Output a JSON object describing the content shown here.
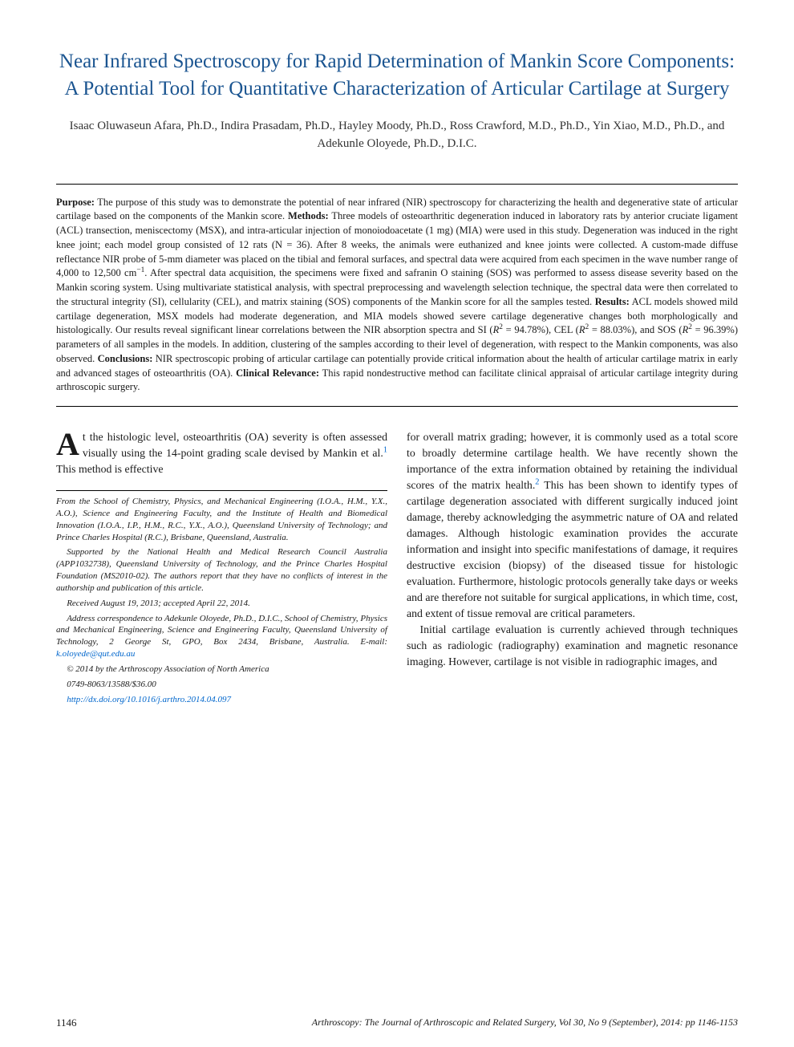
{
  "title": "Near Infrared Spectroscopy for Rapid Determination of Mankin Score Components: A Potential Tool for Quantitative Characterization of Articular Cartilage at Surgery",
  "authors": "Isaac Oluwaseun Afara, Ph.D., Indira Prasadam, Ph.D., Hayley Moody, Ph.D., Ross Crawford, M.D., Ph.D., Yin Xiao, M.D., Ph.D., and Adekunle Oloyede, Ph.D., D.I.C.",
  "abstract": {
    "purpose_label": "Purpose:",
    "purpose": " The purpose of this study was to demonstrate the potential of near infrared (NIR) spectroscopy for characterizing the health and degenerative state of articular cartilage based on the components of the Mankin score. ",
    "methods_label": "Methods:",
    "methods_a": " Three models of osteoarthritic degeneration induced in laboratory rats by anterior cruciate ligament (ACL) transection, meniscectomy (MSX), and intra-articular injection of monoiodoacetate (1 mg) (MIA) were used in this study. Degeneration was induced in the right knee joint; each model group consisted of 12 rats (N = 36). After 8 weeks, the animals were euthanized and knee joints were collected. A custom-made diffuse reflectance NIR probe of 5-mm diameter was placed on the tibial and femoral surfaces, and spectral data were acquired from each specimen in the wave number range of 4,000 to 12,500 cm",
    "methods_sup": "−1",
    "methods_b": ". After spectral data acquisition, the specimens were fixed and safranin O staining (SOS) was performed to assess disease severity based on the Mankin scoring system. Using multivariate statistical analysis, with spectral preprocessing and wavelength selection technique, the spectral data were then correlated to the structural integrity (SI), cellularity (CEL), and matrix staining (SOS) components of the Mankin score for all the samples tested. ",
    "results_label": "Results:",
    "results_a": " ACL models showed mild cartilage degeneration, MSX models had moderate degeneration, and MIA models showed severe cartilage degenerative changes both morphologically and histologically. Our results reveal significant linear correlations between the NIR absorption spectra and SI (",
    "r2": "R",
    "results_si": " = 94.78%), CEL (",
    "results_cel": " = 88.03%), and SOS (",
    "results_sos": " = 96.39%) parameters of all samples in the models. In addition, clustering of the samples according to their level of degeneration, with respect to the Mankin components, was also observed. ",
    "conclusions_label": "Conclusions:",
    "conclusions": " NIR spectroscopic probing of articular cartilage can potentially provide critical information about the health of articular cartilage matrix in early and advanced stages of osteoarthritis (OA). ",
    "relevance_label": "Clinical Relevance:",
    "relevance": " This rapid nondestructive method can facilitate clinical appraisal of articular cartilage integrity during arthroscopic surgery."
  },
  "body": {
    "left_dropcap": "A",
    "left_p1_a": "t the histologic level, osteoarthritis (OA) severity is often assessed visually using the 14-point grading scale devised by Mankin et al.",
    "left_p1_ref": "1",
    "left_p1_b": " This method is effective",
    "right_p1_a": "for overall matrix grading; however, it is commonly used as a total score to broadly determine cartilage health. We have recently shown the importance of the extra information obtained by retaining the individual scores of the matrix health.",
    "right_p1_ref": "2",
    "right_p1_b": " This has been shown to identify types of cartilage degeneration associated with different surgically induced joint damage, thereby acknowledging the asymmetric nature of OA and related damages. Although histologic examination provides the accurate information and insight into specific manifestations of damage, it requires destructive excision (biopsy) of the diseased tissue for histologic evaluation. Furthermore, histologic protocols generally take days or weeks and are therefore not suitable for surgical applications, in which time, cost, and extent of tissue removal are critical parameters.",
    "right_p2": "Initial cartilage evaluation is currently achieved through techniques such as radiologic (radiography) examination and magnetic resonance imaging. However, cartilage is not visible in radiographic images, and"
  },
  "footnotes": {
    "affil": "From the School of Chemistry, Physics, and Mechanical Engineering (I.O.A., H.M., Y.X., A.O.), Science and Engineering Faculty, and the Institute of Health and Biomedical Innovation (I.O.A., I.P., H.M., R.C., Y.X., A.O.), Queensland University of Technology; and Prince Charles Hospital (R.C.), Brisbane, Queensland, Australia.",
    "support": "Supported by the National Health and Medical Research Council Australia (APP1032738), Queensland University of Technology, and the Prince Charles Hospital Foundation (MS2010-02). The authors report that they have no conflicts of interest in the authorship and publication of this article.",
    "received": "Received August 19, 2013; accepted April 22, 2014.",
    "address": "Address correspondence to Adekunle Oloyede, Ph.D., D.I.C., School of Chemistry, Physics and Mechanical Engineering, Science and Engineering Faculty, Queensland University of Technology, 2 George St, GPO, Box 2434, Brisbane, Australia. E-mail: ",
    "email": "k.oloyede@qut.edu.au",
    "copyright": "© 2014 by the Arthroscopy Association of North America",
    "issn": "0749-8063/13588/$36.00",
    "doi": "http://dx.doi.org/10.1016/j.arthro.2014.04.097"
  },
  "footer": {
    "page": "1146",
    "journal": "Arthroscopy: The Journal of Arthroscopic and Related Surgery, Vol 30, No 9 (September), 2014: pp 1146-1153"
  },
  "colors": {
    "title": "#1a5490",
    "link": "#0066cc",
    "text": "#1a1a1a",
    "bg": "#ffffff"
  }
}
